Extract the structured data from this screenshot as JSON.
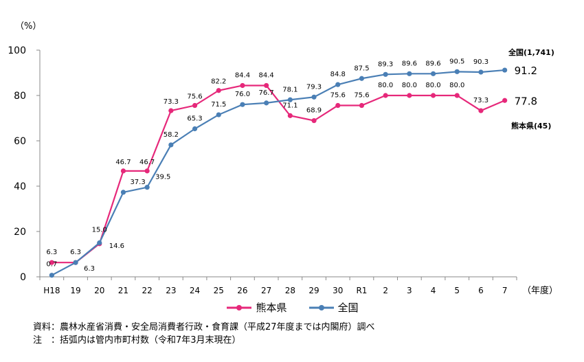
{
  "chart_data": {
    "type": "line",
    "ylabel": "（%）",
    "xlabel": "（年度）",
    "ylim": [
      0,
      100
    ],
    "yticks": [
      0,
      20,
      40,
      60,
      80,
      100
    ],
    "categories": [
      "H18",
      "19",
      "20",
      "21",
      "22",
      "23",
      "24",
      "25",
      "26",
      "27",
      "28",
      "29",
      "30",
      "R1",
      "2",
      "3",
      "4",
      "5",
      "6",
      "7"
    ],
    "series": [
      {
        "name": "熊本県",
        "color": "#e6287a",
        "values": [
          6.3,
          6.3,
          14.6,
          46.7,
          46.7,
          73.3,
          75.6,
          82.2,
          84.4,
          84.4,
          71.1,
          68.9,
          75.6,
          75.6,
          80.0,
          80.0,
          80.0,
          80.0,
          73.3,
          77.8
        ],
        "end_label": "熊本県(45)"
      },
      {
        "name": "全国",
        "color": "#4a7fb5",
        "values": [
          0.7,
          6.3,
          15.0,
          37.3,
          39.5,
          58.2,
          65.3,
          71.5,
          76.0,
          76.7,
          78.1,
          79.3,
          84.8,
          87.5,
          89.3,
          89.6,
          89.6,
          90.5,
          90.3,
          91.2
        ],
        "end_label": "全国(1,741)"
      }
    ]
  },
  "notes": [
    "資料：農林水産省消費・安全局消費者行政・食育課（平成27年度までは内閣府）調べ",
    "注　：括弧内は管内市町村数（令和7年3月末現在）"
  ]
}
